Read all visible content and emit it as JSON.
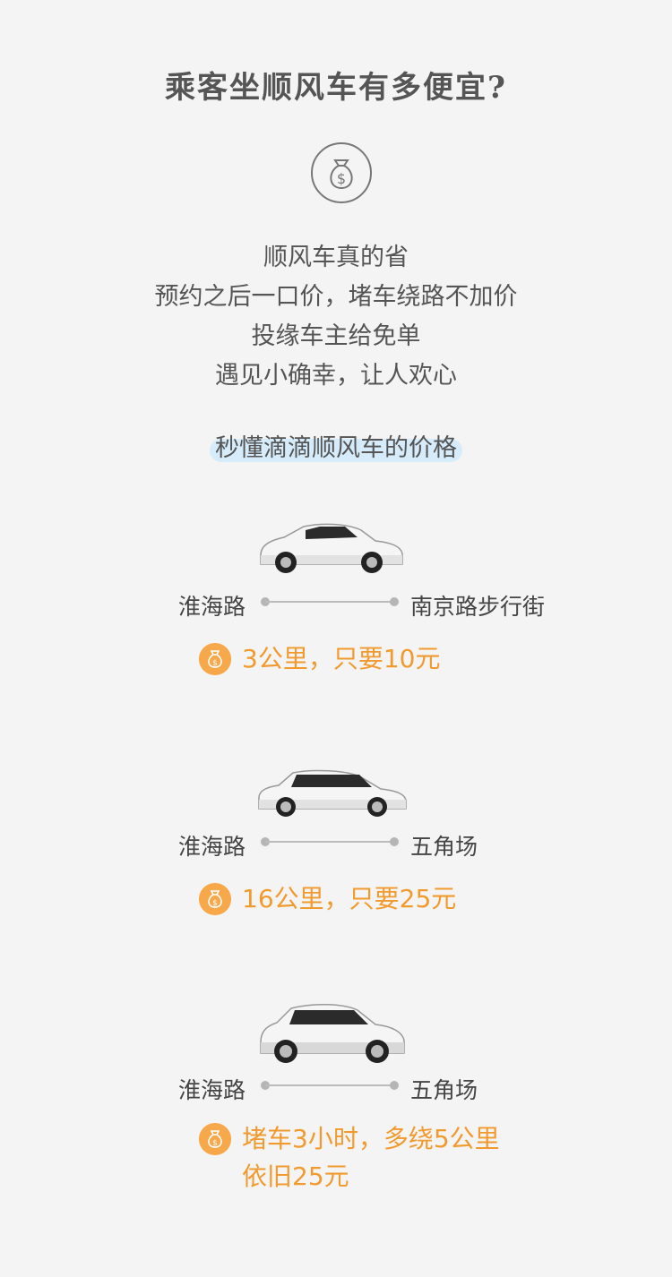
{
  "title": "乘客坐顺风车有多便宜?",
  "intro": {
    "lines": [
      "顺风车真的省",
      "预约之后一口价，堵车绕路不加价",
      "投缘车主给免单",
      "遇见小确幸，让人欢心"
    ]
  },
  "highlight": "秒懂滴滴顺风车的价格",
  "trips": [
    {
      "from": "淮海路",
      "to": "南京路步行街",
      "price_lines": [
        "3公里，只要10元"
      ]
    },
    {
      "from": "淮海路",
      "to": "五角场",
      "price_lines": [
        "16公里，只要25元"
      ]
    },
    {
      "from": "淮海路",
      "to": "五角场",
      "price_lines": [
        "堵车3小时，多绕5公里",
        "依旧25元"
      ]
    }
  ],
  "colors": {
    "accent": "#f19a2e",
    "coin": "#f6a84b",
    "highlight_bg": "#d6ecfb",
    "background": "#f4f4f4"
  },
  "icons": {
    "money": "money-bag-icon",
    "car": "car-icon"
  }
}
